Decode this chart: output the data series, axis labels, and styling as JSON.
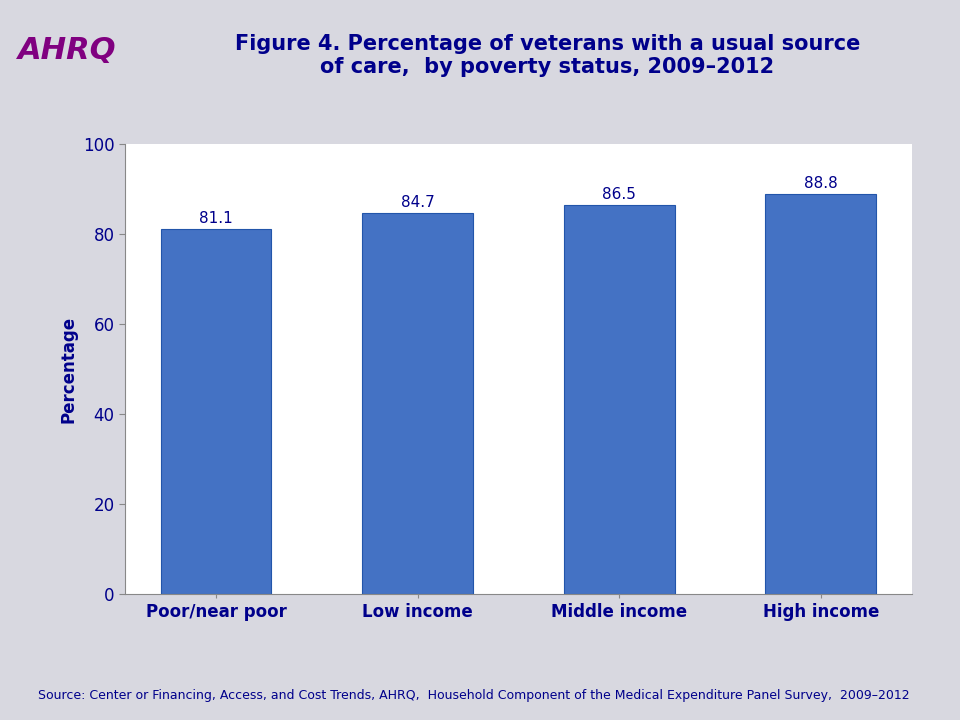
{
  "title": "Figure 4. Percentage of veterans with a usual source\nof care,  by poverty status, 2009–2012",
  "categories": [
    "Poor/near poor",
    "Low income",
    "Middle income",
    "High income"
  ],
  "values": [
    81.1,
    84.7,
    86.5,
    88.8
  ],
  "bar_color": "#4472C4",
  "ylabel": "Percentage",
  "ylim": [
    0,
    100
  ],
  "yticks": [
    0,
    20,
    40,
    60,
    80,
    100
  ],
  "title_color": "#00008B",
  "title_fontsize": 15,
  "label_fontsize": 12,
  "tick_fontsize": 12,
  "value_label_fontsize": 11,
  "value_label_color": "#00008B",
  "source_text": "Source: Center or Financing, Access, and Cost Trends, AHRQ,  Household Component of the Medical Expenditure Panel Survey,  2009–2012",
  "source_fontsize": 9,
  "background_color": "#D8D8E0",
  "plot_bg_color": "#FFFFFF",
  "header_line_color": "#AAAACC",
  "bar_width": 0.55,
  "ahrq_text": "AHRQ",
  "ahrq_color": "#800080"
}
